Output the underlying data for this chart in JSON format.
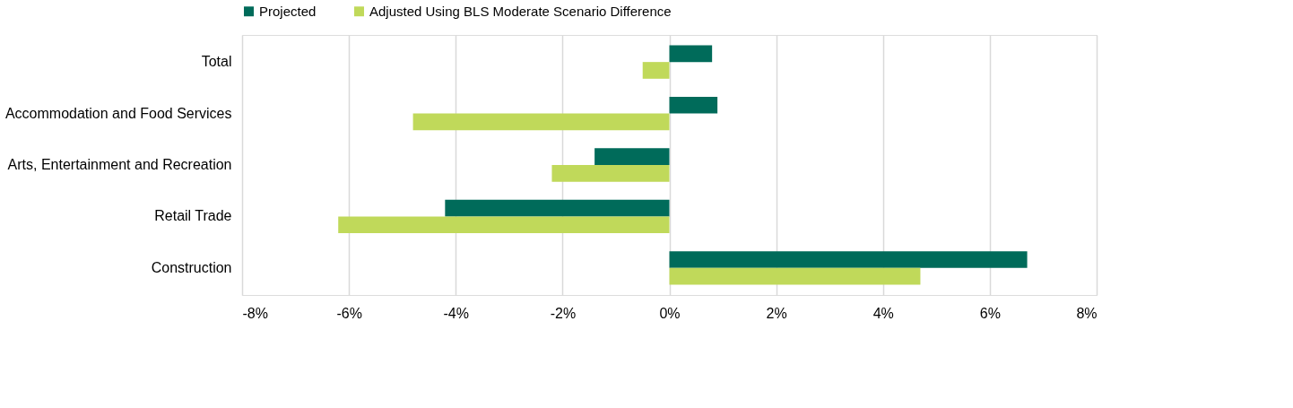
{
  "chart_data": {
    "type": "bar",
    "orientation": "horizontal",
    "categories": [
      "Total",
      "Accommodation and Food Services",
      "Arts, Entertainment and Recreation",
      "Retail Trade",
      "Construction"
    ],
    "series": [
      {
        "name": "Projected",
        "color": "#006b5a",
        "values": [
          0.8,
          0.9,
          -1.4,
          -4.2,
          6.7
        ]
      },
      {
        "name": "Adjusted Using BLS Moderate Scenario Difference",
        "color": "#c0d95a",
        "values": [
          -0.5,
          -4.8,
          -2.2,
          -6.2,
          4.7
        ]
      }
    ],
    "xlim": [
      -8,
      8
    ],
    "xticks": [
      {
        "value": -8,
        "label": "-8%"
      },
      {
        "value": -6,
        "label": "-6%"
      },
      {
        "value": -4,
        "label": "-4%"
      },
      {
        "value": -2,
        "label": "-2%"
      },
      {
        "value": 0,
        "label": "0%"
      },
      {
        "value": 2,
        "label": "2%"
      },
      {
        "value": 4,
        "label": "4%"
      },
      {
        "value": 6,
        "label": "6%"
      },
      {
        "value": 8,
        "label": "8%"
      }
    ],
    "grid": "x",
    "legend": "top"
  }
}
